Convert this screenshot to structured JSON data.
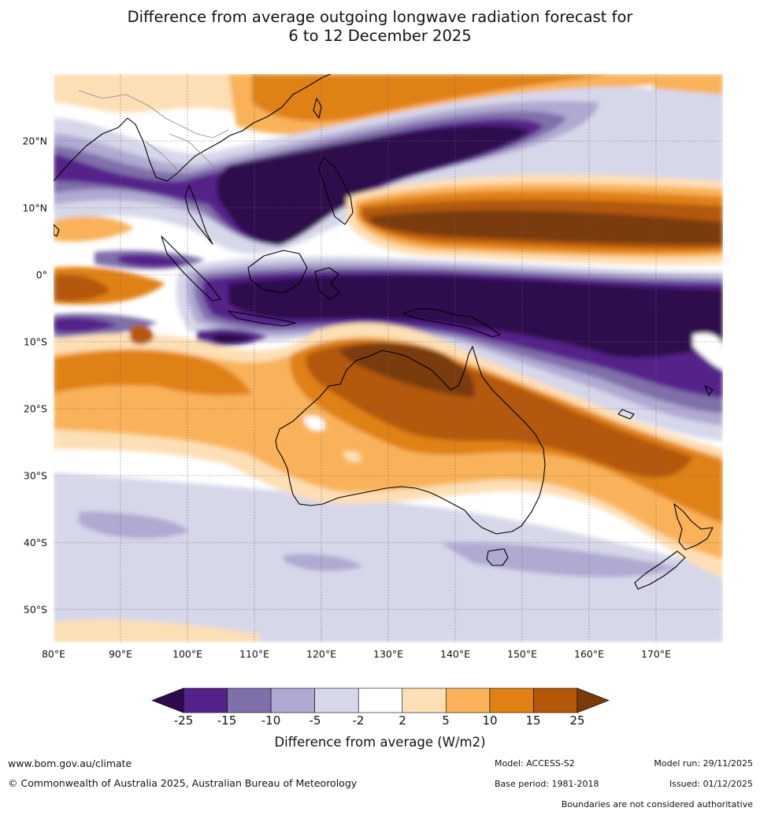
{
  "title": {
    "line1": "Difference from average outgoing longwave radiation forecast for",
    "line2": "6 to 12 December 2025"
  },
  "map": {
    "lon_range": [
      80,
      180
    ],
    "lat_range": [
      -55,
      30
    ],
    "lat_labels": [
      "20°N",
      "10°N",
      "0°",
      "10°S",
      "20°S",
      "30°S",
      "40°S",
      "50°S"
    ],
    "lat_values": [
      20,
      10,
      0,
      -10,
      -20,
      -30,
      -40,
      -50
    ],
    "lon_labels": [
      "80°E",
      "90°E",
      "100°E",
      "110°E",
      "120°E",
      "130°E",
      "140°E",
      "150°E",
      "160°E",
      "170°E"
    ],
    "lon_values": [
      80,
      90,
      100,
      110,
      120,
      130,
      140,
      150,
      160,
      170
    ]
  },
  "colorbar": {
    "ticks": [
      "-25",
      "-15",
      "-10",
      "-5",
      "-2",
      "2",
      "5",
      "10",
      "15",
      "25"
    ],
    "colors": [
      "#2d0a4e",
      "#55228a",
      "#8070aa",
      "#b0a9d1",
      "#d7d7ea",
      "#ffffff",
      "#fddfb5",
      "#f9b25a",
      "#e08114",
      "#b35807",
      "#7a3b0a"
    ],
    "label": "Difference from average (W/m2)"
  },
  "footer": {
    "website": "www.bom.gov.au/climate",
    "copyright": "© Commonwealth of Australia 2025, Australian Bureau of Meteorology",
    "model": "Model: ACCESS-S2",
    "base_period": "Base period: 1981-2018",
    "model_run": "Model run: 29/11/2025",
    "issued": "Issued: 01/12/2025",
    "disclaimer": "Boundaries are not considered authoritative"
  }
}
